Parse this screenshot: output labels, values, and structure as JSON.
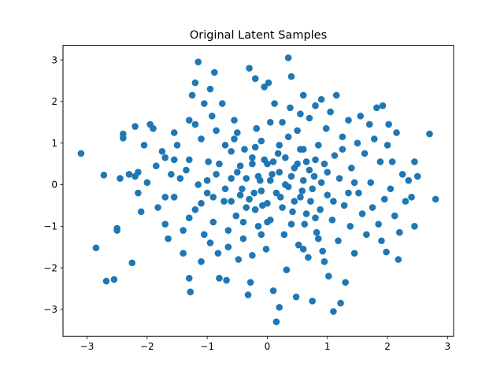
{
  "chart_data": {
    "type": "scatter",
    "title": "Original Latent Samples",
    "xlabel": "",
    "ylabel": "",
    "xlim": [
      -3.4,
      3.1
    ],
    "ylim": [
      -3.65,
      3.35
    ],
    "xticks": [
      -3,
      -2,
      -1,
      0,
      1,
      2,
      3
    ],
    "yticks": [
      -3,
      -2,
      -1,
      0,
      1,
      2,
      3
    ],
    "grid": false,
    "marker_color": "#1f77b4",
    "series": [
      {
        "points": [
          [
            -3.1,
            0.75
          ],
          [
            -2.85,
            -1.52
          ],
          [
            -2.72,
            0.23
          ],
          [
            -2.68,
            -2.32
          ],
          [
            -2.55,
            -2.28
          ],
          [
            -2.5,
            -1.05
          ],
          [
            -2.5,
            -1.1
          ],
          [
            -2.45,
            0.15
          ],
          [
            -2.4,
            1.22
          ],
          [
            -2.4,
            1.12
          ],
          [
            -2.3,
            0.25
          ],
          [
            -2.25,
            -1.88
          ],
          [
            -2.2,
            1.4
          ],
          [
            -2.2,
            0.2
          ],
          [
            -2.15,
            0.3
          ],
          [
            -2.15,
            -0.2
          ],
          [
            -2.1,
            -0.65
          ],
          [
            -2.05,
            0.95
          ],
          [
            -2.0,
            0.05
          ],
          [
            -1.95,
            1.45
          ],
          [
            -1.9,
            1.35
          ],
          [
            -1.85,
            0.45
          ],
          [
            -1.82,
            -0.55
          ],
          [
            -1.75,
            0.8
          ],
          [
            -1.7,
            0.65
          ],
          [
            -1.7,
            -0.95
          ],
          [
            -1.65,
            -1.3
          ],
          [
            -1.6,
            0.25
          ],
          [
            -1.55,
            1.25
          ],
          [
            -1.55,
            -0.3
          ],
          [
            -1.5,
            0.95
          ],
          [
            -1.45,
            0.15
          ],
          [
            -1.4,
            -1.1
          ],
          [
            -1.4,
            -1.65
          ],
          [
            -1.35,
            0.35
          ],
          [
            -1.3,
            -0.8
          ],
          [
            -1.3,
            1.55
          ],
          [
            -1.3,
            -2.25
          ],
          [
            -1.28,
            -2.58
          ],
          [
            -1.25,
            2.15
          ],
          [
            -1.2,
            2.45
          ],
          [
            -1.2,
            1.45
          ],
          [
            -1.15,
            2.95
          ],
          [
            -1.15,
            0.0
          ],
          [
            -1.1,
            -0.45
          ],
          [
            -1.1,
            1.1
          ],
          [
            -1.05,
            -1.2
          ],
          [
            -1.05,
            1.95
          ],
          [
            -1.0,
            -0.2
          ],
          [
            -0.98,
            0.55
          ],
          [
            -0.95,
            2.3
          ],
          [
            -0.92,
            1.65
          ],
          [
            -0.9,
            -0.9
          ],
          [
            -0.88,
            2.7
          ],
          [
            -0.85,
            0.25
          ],
          [
            -0.82,
            -1.65
          ],
          [
            -0.8,
            -2.25
          ],
          [
            -0.75,
            1.95
          ],
          [
            -0.72,
            -0.4
          ],
          [
            -0.7,
            0.95
          ],
          [
            -0.68,
            -2.3
          ],
          [
            -0.65,
            -1.1
          ],
          [
            -0.6,
            0.15
          ],
          [
            -0.55,
            1.55
          ],
          [
            -0.52,
            -0.75
          ],
          [
            -0.5,
            1.25
          ],
          [
            -0.48,
            -1.8
          ],
          [
            -0.45,
            0.45
          ],
          [
            -0.42,
            -0.1
          ],
          [
            -0.4,
            -1.3
          ],
          [
            -0.38,
            0.85
          ],
          [
            -0.35,
            -0.55
          ],
          [
            -0.32,
            -2.65
          ],
          [
            -0.3,
            2.8
          ],
          [
            -0.28,
            -2.35
          ],
          [
            -0.25,
            0.65
          ],
          [
            -0.22,
            -0.2
          ],
          [
            -0.2,
            2.55
          ],
          [
            -0.18,
            1.35
          ],
          [
            -0.15,
            -1.0
          ],
          [
            -0.12,
            0.1
          ],
          [
            -0.1,
            1.05
          ],
          [
            -0.08,
            -0.5
          ],
          [
            -0.05,
            2.35
          ],
          [
            -0.02,
            -1.55
          ],
          [
            0.0,
            0.5
          ],
          [
            0.02,
            2.45
          ],
          [
            0.05,
            -0.85
          ],
          [
            0.08,
            0.25
          ],
          [
            0.1,
            -2.55
          ],
          [
            0.12,
            1.95
          ],
          [
            0.15,
            -3.3
          ],
          [
            0.18,
            0.75
          ],
          [
            0.2,
            -2.95
          ],
          [
            0.22,
            -0.3
          ],
          [
            0.25,
            1.5
          ],
          [
            0.28,
            -1.2
          ],
          [
            0.3,
            0.0
          ],
          [
            0.32,
            -2.05
          ],
          [
            0.35,
            3.05
          ],
          [
            0.38,
            1.85
          ],
          [
            0.4,
            2.6
          ],
          [
            0.42,
            -0.65
          ],
          [
            0.45,
            0.4
          ],
          [
            0.48,
            -2.7
          ],
          [
            0.5,
            1.3
          ],
          [
            0.52,
            -1.45
          ],
          [
            0.55,
            0.85
          ],
          [
            0.58,
            -0.15
          ],
          [
            0.6,
            2.15
          ],
          [
            0.62,
            -0.95
          ],
          [
            0.65,
            0.55
          ],
          [
            0.68,
            -1.75
          ],
          [
            0.7,
            1.6
          ],
          [
            0.72,
            -0.4
          ],
          [
            0.75,
            -2.8
          ],
          [
            0.78,
            0.2
          ],
          [
            0.8,
            1.9
          ],
          [
            0.82,
            -1.15
          ],
          [
            0.85,
            0.95
          ],
          [
            0.88,
            -0.6
          ],
          [
            0.9,
            2.05
          ],
          [
            0.92,
            -1.6
          ],
          [
            0.95,
            0.5
          ],
          [
            0.98,
            1.35
          ],
          [
            1.0,
            -0.25
          ],
          [
            1.02,
            -2.2
          ],
          [
            1.05,
            1.75
          ],
          [
            1.08,
            -0.85
          ],
          [
            1.1,
            -3.05
          ],
          [
            1.12,
            0.7
          ],
          [
            1.15,
            2.15
          ],
          [
            1.18,
            -1.35
          ],
          [
            1.2,
            0.15
          ],
          [
            1.22,
            -2.85
          ],
          [
            1.25,
            1.15
          ],
          [
            1.28,
            -0.5
          ],
          [
            1.3,
            -2.35
          ],
          [
            1.35,
            1.55
          ],
          [
            1.38,
            -1.0
          ],
          [
            1.4,
            0.4
          ],
          [
            1.45,
            -1.65
          ],
          [
            1.5,
            1.0
          ],
          [
            1.52,
            -0.2
          ],
          [
            1.55,
            1.65
          ],
          [
            1.58,
            -0.7
          ],
          [
            1.62,
            0.75
          ],
          [
            1.65,
            -1.2
          ],
          [
            1.7,
            1.45
          ],
          [
            1.72,
            0.05
          ],
          [
            1.75,
            -0.55
          ],
          [
            1.78,
            1.1
          ],
          [
            1.82,
            1.85
          ],
          [
            1.85,
            -0.95
          ],
          [
            1.88,
            0.55
          ],
          [
            1.9,
            -1.35
          ],
          [
            1.92,
            1.9
          ],
          [
            1.95,
            -0.35
          ],
          [
            1.98,
            -1.62
          ],
          [
            2.0,
            0.95
          ],
          [
            2.02,
            1.45
          ],
          [
            2.05,
            -0.1
          ],
          [
            2.08,
            0.55
          ],
          [
            2.12,
            -0.75
          ],
          [
            2.15,
            1.25
          ],
          [
            2.18,
            -1.8
          ],
          [
            2.2,
            -1.15
          ],
          [
            2.25,
            0.25
          ],
          [
            2.3,
            -0.4
          ],
          [
            2.35,
            0.1
          ],
          [
            2.4,
            -0.3
          ],
          [
            2.45,
            0.55
          ],
          [
            2.45,
            -1.0
          ],
          [
            2.5,
            0.2
          ],
          [
            2.7,
            1.22
          ],
          [
            2.8,
            -0.35
          ],
          [
            -0.7,
            -0.1
          ],
          [
            -0.6,
            -0.4
          ],
          [
            -0.5,
            0.3
          ],
          [
            -0.45,
            -0.25
          ],
          [
            -0.35,
            0.15
          ],
          [
            -0.3,
            -0.35
          ],
          [
            -0.25,
            0.5
          ],
          [
            -0.2,
            -0.6
          ],
          [
            -0.15,
            0.2
          ],
          [
            -0.1,
            -0.15
          ],
          [
            -0.05,
            0.6
          ],
          [
            0.0,
            -0.45
          ],
          [
            0.05,
            0.1
          ],
          [
            0.1,
            0.55
          ],
          [
            0.15,
            -0.2
          ],
          [
            0.2,
            0.3
          ],
          [
            0.25,
            -0.55
          ],
          [
            0.3,
            0.65
          ],
          [
            0.35,
            -0.05
          ],
          [
            0.4,
            0.2
          ],
          [
            0.45,
            -0.4
          ],
          [
            0.5,
            0.5
          ],
          [
            0.55,
            -0.3
          ],
          [
            0.6,
            0.1
          ],
          [
            0.65,
            -0.7
          ],
          [
            0.7,
            0.35
          ],
          [
            0.75,
            -0.1
          ],
          [
            0.8,
            0.6
          ],
          [
            -0.8,
            0.5
          ],
          [
            -0.9,
            -0.3
          ],
          [
            -1.0,
            0.1
          ],
          [
            -0.6,
            0.8
          ],
          [
            -0.4,
            -0.9
          ],
          [
            -0.2,
            0.9
          ],
          [
            0.0,
            -0.9
          ],
          [
            0.2,
            0.95
          ],
          [
            0.4,
            -0.95
          ],
          [
            0.6,
            0.85
          ],
          [
            0.8,
            -0.8
          ],
          [
            1.0,
            0.3
          ],
          [
            1.1,
            -0.4
          ],
          [
            0.9,
            0.05
          ],
          [
            -1.2,
            -0.6
          ],
          [
            -1.3,
            0.6
          ],
          [
            -0.95,
            -1.4
          ],
          [
            -0.55,
            1.1
          ],
          [
            -0.1,
            -1.2
          ],
          [
            0.35,
            1.15
          ],
          [
            0.85,
            -1.3
          ],
          [
            1.25,
            0.85
          ],
          [
            1.35,
            -0.2
          ],
          [
            -1.55,
            0.6
          ],
          [
            -1.7,
            -0.3
          ],
          [
            -0.65,
            -1.5
          ],
          [
            0.05,
            1.5
          ],
          [
            0.6,
            -1.55
          ],
          [
            1.45,
            0.05
          ],
          [
            -0.25,
            -1.7
          ],
          [
            0.55,
            1.7
          ],
          [
            -0.85,
            1.3
          ],
          [
            0.95,
            -1.85
          ],
          [
            -1.1,
            -1.85
          ]
        ]
      }
    ]
  }
}
